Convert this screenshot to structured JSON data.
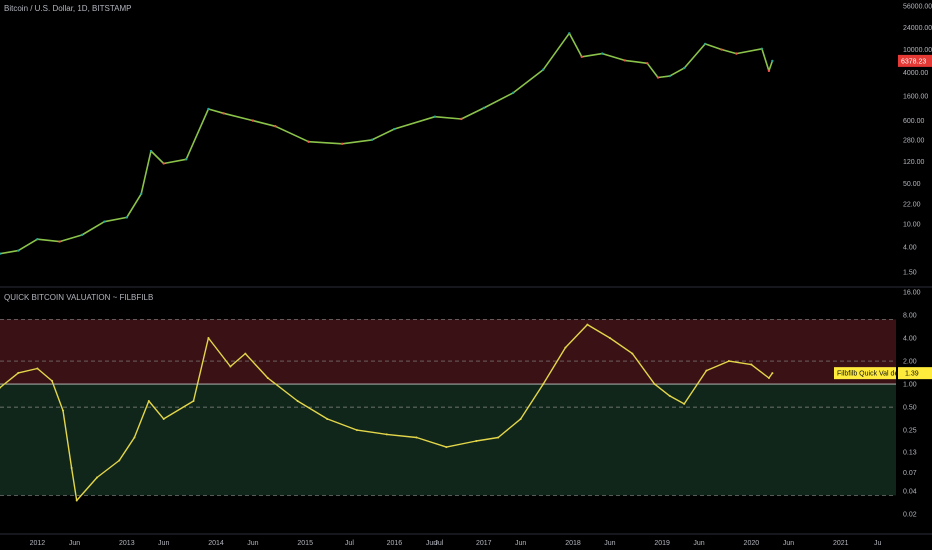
{
  "header": {
    "main_title": "Bitcoin / U.S. Dollar, 1D, BITSTAMP",
    "indicator_title": "QUICK BITCOIN VALUATION ~ FILBFILB"
  },
  "colors": {
    "background": "#000000",
    "up_candle": "#26a69a",
    "down_candle": "#ef5350",
    "price_line": "#8bc34a",
    "indicator_line": "#e3d64a",
    "red_zone": "#3a1215",
    "green_zone": "#10261a",
    "price_badge": "#e53935",
    "indicator_badge": "#ffeb3b"
  },
  "chart_data": [
    {
      "type": "line",
      "scale": "log",
      "title": "Bitcoin / U.S. Dollar, 1D, BITSTAMP",
      "y_ticks": [
        "56000.00",
        "24000.00",
        "10000.00",
        "4000.00",
        "1600.00",
        "600.00",
        "280.00",
        "120.00",
        "50.00",
        "22.00",
        "10.00",
        "4.00",
        "1.50"
      ],
      "last_price_label": "6378.23",
      "x": [
        "2011-08-01",
        "2011-10-15",
        "2012-01-01",
        "2012-04-01",
        "2012-07-01",
        "2012-10-01",
        "2013-01-01",
        "2013-03-01",
        "2013-04-10",
        "2013-06-01",
        "2013-09-01",
        "2013-12-01",
        "2014-02-01",
        "2014-06-01",
        "2014-09-01",
        "2015-01-15",
        "2015-06-01",
        "2015-10-01",
        "2016-01-01",
        "2016-06-15",
        "2016-10-01",
        "2017-01-01",
        "2017-05-01",
        "2017-09-01",
        "2017-12-17",
        "2018-02-06",
        "2018-05-01",
        "2018-08-01",
        "2018-11-01",
        "2018-12-15",
        "2019-02-01",
        "2019-04-01",
        "2019-06-26",
        "2019-09-01",
        "2019-11-01",
        "2020-02-13",
        "2020-03-13",
        "2020-03-27"
      ],
      "y": [
        3.1,
        3.5,
        5.5,
        5,
        6.5,
        11,
        13,
        33,
        180,
        110,
        130,
        950,
        800,
        600,
        480,
        260,
        240,
        280,
        430,
        700,
        640,
        990,
        1800,
        4500,
        19000,
        7500,
        8500,
        6500,
        5800,
        3300,
        3500,
        4800,
        12500,
        10000,
        8500,
        10300,
        4300,
        6378.23
      ]
    },
    {
      "type": "line",
      "scale": "log",
      "title": "QUICK BITCOIN VALUATION ~ FILBFILB",
      "y_ticks": [
        "16.00",
        "8.00",
        "4.00",
        "2.00",
        "1.00",
        "0.50",
        "0.25",
        "0.13",
        "0.07",
        "0.04",
        "0.02"
      ],
      "zones": [
        {
          "name": "red",
          "from": 1.0,
          "to": 7.0
        },
        {
          "name": "green",
          "from": 0.035,
          "to": 1.0
        }
      ],
      "dashed_levels": [
        7.0,
        2.0,
        0.5,
        0.035
      ],
      "solid_levels": [
        1.0
      ],
      "series_label": "Filbfilb Quick Val delta",
      "last_value_label": "1.39",
      "x": [
        "2011-08-01",
        "2011-10-15",
        "2012-01-01",
        "2012-03-01",
        "2012-04-15",
        "2012-05-20",
        "2012-06-10",
        "2012-09-01",
        "2012-12-01",
        "2013-02-01",
        "2013-04-01",
        "2013-06-01",
        "2013-10-01",
        "2013-12-01",
        "2014-03-01",
        "2014-05-01",
        "2014-08-01",
        "2014-12-01",
        "2015-04-01",
        "2015-08-01",
        "2015-12-01",
        "2016-04-01",
        "2016-08-01",
        "2016-12-01",
        "2017-03-01",
        "2017-06-01",
        "2017-09-01",
        "2017-12-01",
        "2018-03-01",
        "2018-06-01",
        "2018-09-01",
        "2018-12-01",
        "2019-02-01",
        "2019-04-01",
        "2019-07-01",
        "2019-10-01",
        "2020-01-01",
        "2020-03-13",
        "2020-03-27"
      ],
      "y": [
        0.9,
        1.4,
        1.6,
        1.1,
        0.45,
        0.08,
        0.03,
        0.06,
        0.1,
        0.2,
        0.6,
        0.35,
        0.6,
        4.0,
        1.7,
        2.5,
        1.2,
        0.6,
        0.35,
        0.25,
        0.22,
        0.2,
        0.15,
        0.18,
        0.2,
        0.35,
        1.0,
        3.0,
        6.0,
        4.0,
        2.5,
        1.0,
        0.7,
        0.55,
        1.5,
        2.0,
        1.8,
        1.2,
        1.39
      ]
    }
  ],
  "x_axis": {
    "ticks": [
      {
        "label": "2012",
        "date": "2012-01-01"
      },
      {
        "label": "Jun",
        "date": "2012-06-01"
      },
      {
        "label": "2013",
        "date": "2013-01-01"
      },
      {
        "label": "Jun",
        "date": "2013-06-01"
      },
      {
        "label": "2014",
        "date": "2014-01-01"
      },
      {
        "label": "Jun",
        "date": "2014-06-01"
      },
      {
        "label": "2015",
        "date": "2015-01-01"
      },
      {
        "label": "Jul",
        "date": "2015-07-01"
      },
      {
        "label": "2016",
        "date": "2016-01-01"
      },
      {
        "label": "Jun",
        "date": "2016-06-01"
      },
      {
        "label": "Jul",
        "date": "2016-07-01"
      },
      {
        "label": "2017",
        "date": "2017-01-01"
      },
      {
        "label": "Jun",
        "date": "2017-06-01"
      },
      {
        "label": "2018",
        "date": "2018-01-01"
      },
      {
        "label": "Jun",
        "date": "2018-06-01"
      },
      {
        "label": "2019",
        "date": "2019-01-01"
      },
      {
        "label": "Jun",
        "date": "2019-06-01"
      },
      {
        "label": "2020",
        "date": "2020-01-01"
      },
      {
        "label": "Jun",
        "date": "2020-06-01"
      },
      {
        "label": "2021",
        "date": "2021-01-01"
      },
      {
        "label": "Ju",
        "date": "2021-06-01"
      }
    ]
  }
}
